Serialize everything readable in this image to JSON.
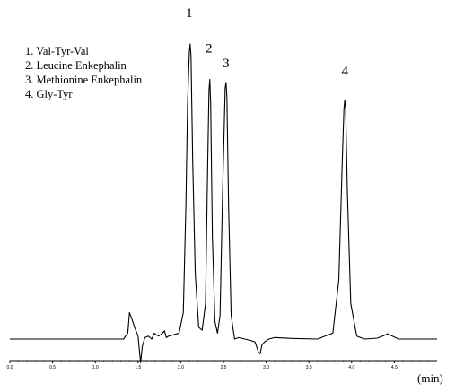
{
  "chart_data": {
    "type": "line",
    "title": "",
    "xlabel": "(min)",
    "ylabel": "",
    "xlim": [
      0,
      5.0
    ],
    "ylim": [
      0,
      1.0
    ],
    "grid": false,
    "legend_position": "top-left",
    "legend": [
      "1. Val-Tyr-Val",
      "2. Leucine Enkephalin",
      "3. Methionine Enkephalin",
      "4. Gly-Tyr"
    ],
    "x_ticks": [
      0.0,
      0.5,
      1.0,
      1.5,
      2.0,
      2.5,
      3.0,
      3.5,
      4.0,
      4.5
    ],
    "x_tick_labels": [
      "0.0",
      "0.5",
      "1.0",
      "1.5",
      "2.0",
      "2.5",
      "3.0",
      "3.5",
      "4.0",
      "4.5"
    ],
    "peaks": [
      {
        "label": "1",
        "x": 2.11,
        "height": 1.0
      },
      {
        "label": "2",
        "x": 2.34,
        "height": 0.88
      },
      {
        "label": "3",
        "x": 2.53,
        "height": 0.87
      },
      {
        "label": "4",
        "x": 3.92,
        "height": 0.81
      }
    ],
    "series": [
      {
        "color": "#000000",
        "x": [
          0.0,
          1.2,
          1.33,
          1.38,
          1.4,
          1.42,
          1.46,
          1.5,
          1.53,
          1.55,
          1.58,
          1.62,
          1.66,
          1.69,
          1.71,
          1.74,
          1.78,
          1.81,
          1.83,
          1.86,
          1.92,
          1.98,
          2.03,
          2.06,
          2.08,
          2.1,
          2.11,
          2.12,
          2.14,
          2.17,
          2.21,
          2.25,
          2.29,
          2.31,
          2.33,
          2.34,
          2.35,
          2.37,
          2.4,
          2.43,
          2.46,
          2.49,
          2.52,
          2.53,
          2.54,
          2.56,
          2.59,
          2.63,
          2.68,
          2.75,
          2.82,
          2.87,
          2.91,
          2.93,
          2.95,
          2.98,
          3.03,
          3.1,
          3.3,
          3.6,
          3.78,
          3.85,
          3.89,
          3.91,
          3.92,
          3.93,
          3.95,
          3.99,
          4.06,
          4.15,
          4.3,
          4.38,
          4.42,
          4.46,
          4.55,
          5.0
        ],
        "y": [
          0.0,
          0.0,
          0.0,
          0.02,
          0.09,
          0.075,
          0.04,
          0.01,
          -0.08,
          -0.025,
          0.005,
          0.01,
          0.0,
          0.02,
          0.015,
          0.01,
          0.018,
          0.028,
          0.005,
          0.01,
          0.015,
          0.02,
          0.09,
          0.45,
          0.8,
          0.97,
          1.0,
          0.96,
          0.6,
          0.22,
          0.04,
          0.03,
          0.12,
          0.5,
          0.84,
          0.88,
          0.8,
          0.35,
          0.06,
          0.02,
          0.08,
          0.5,
          0.85,
          0.87,
          0.82,
          0.45,
          0.08,
          0.0,
          0.005,
          0.0,
          -0.005,
          -0.01,
          -0.045,
          -0.05,
          -0.02,
          -0.01,
          0.0,
          0.005,
          0.002,
          0.0,
          0.02,
          0.2,
          0.6,
          0.78,
          0.81,
          0.78,
          0.5,
          0.12,
          0.01,
          0.0,
          0.003,
          0.012,
          0.018,
          0.012,
          0.0,
          0.0
        ]
      }
    ]
  }
}
